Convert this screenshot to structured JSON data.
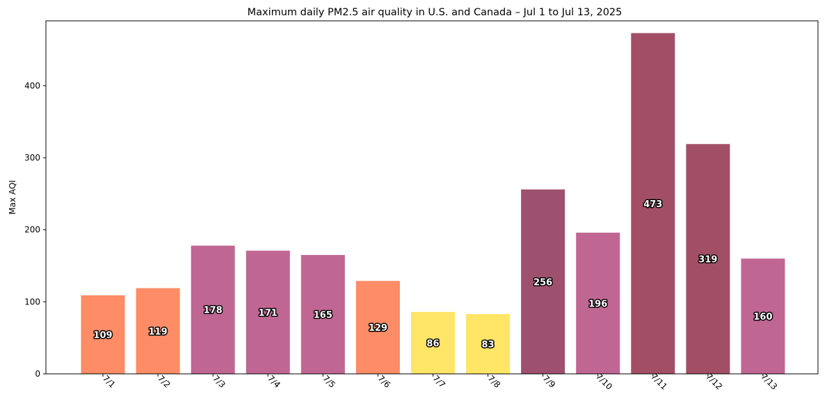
{
  "chart_data": {
    "type": "bar",
    "title": "Maximum daily PM2.5 air quality in U.S. and Canada – Jul 1 to Jul 13, 2025",
    "xlabel": "",
    "ylabel": "Max AQI",
    "categories": [
      "7/1",
      "7/2",
      "7/3",
      "7/4",
      "7/5",
      "7/6",
      "7/7",
      "7/8",
      "7/9",
      "7/10",
      "7/11",
      "7/12",
      "7/13"
    ],
    "values": [
      109,
      119,
      178,
      171,
      165,
      129,
      86,
      83,
      256,
      196,
      473,
      319,
      160
    ],
    "bar_colors": [
      "#fe8c66",
      "#fe8c66",
      "#c06693",
      "#c06693",
      "#c06693",
      "#fe8c66",
      "#fee566",
      "#fee566",
      "#9e506f",
      "#c06693",
      "#a24f66",
      "#a24f66",
      "#c06693"
    ],
    "ylim": [
      0,
      490
    ],
    "yticks": [
      0,
      100,
      200,
      300,
      400
    ],
    "grid": false,
    "legend": "none"
  }
}
